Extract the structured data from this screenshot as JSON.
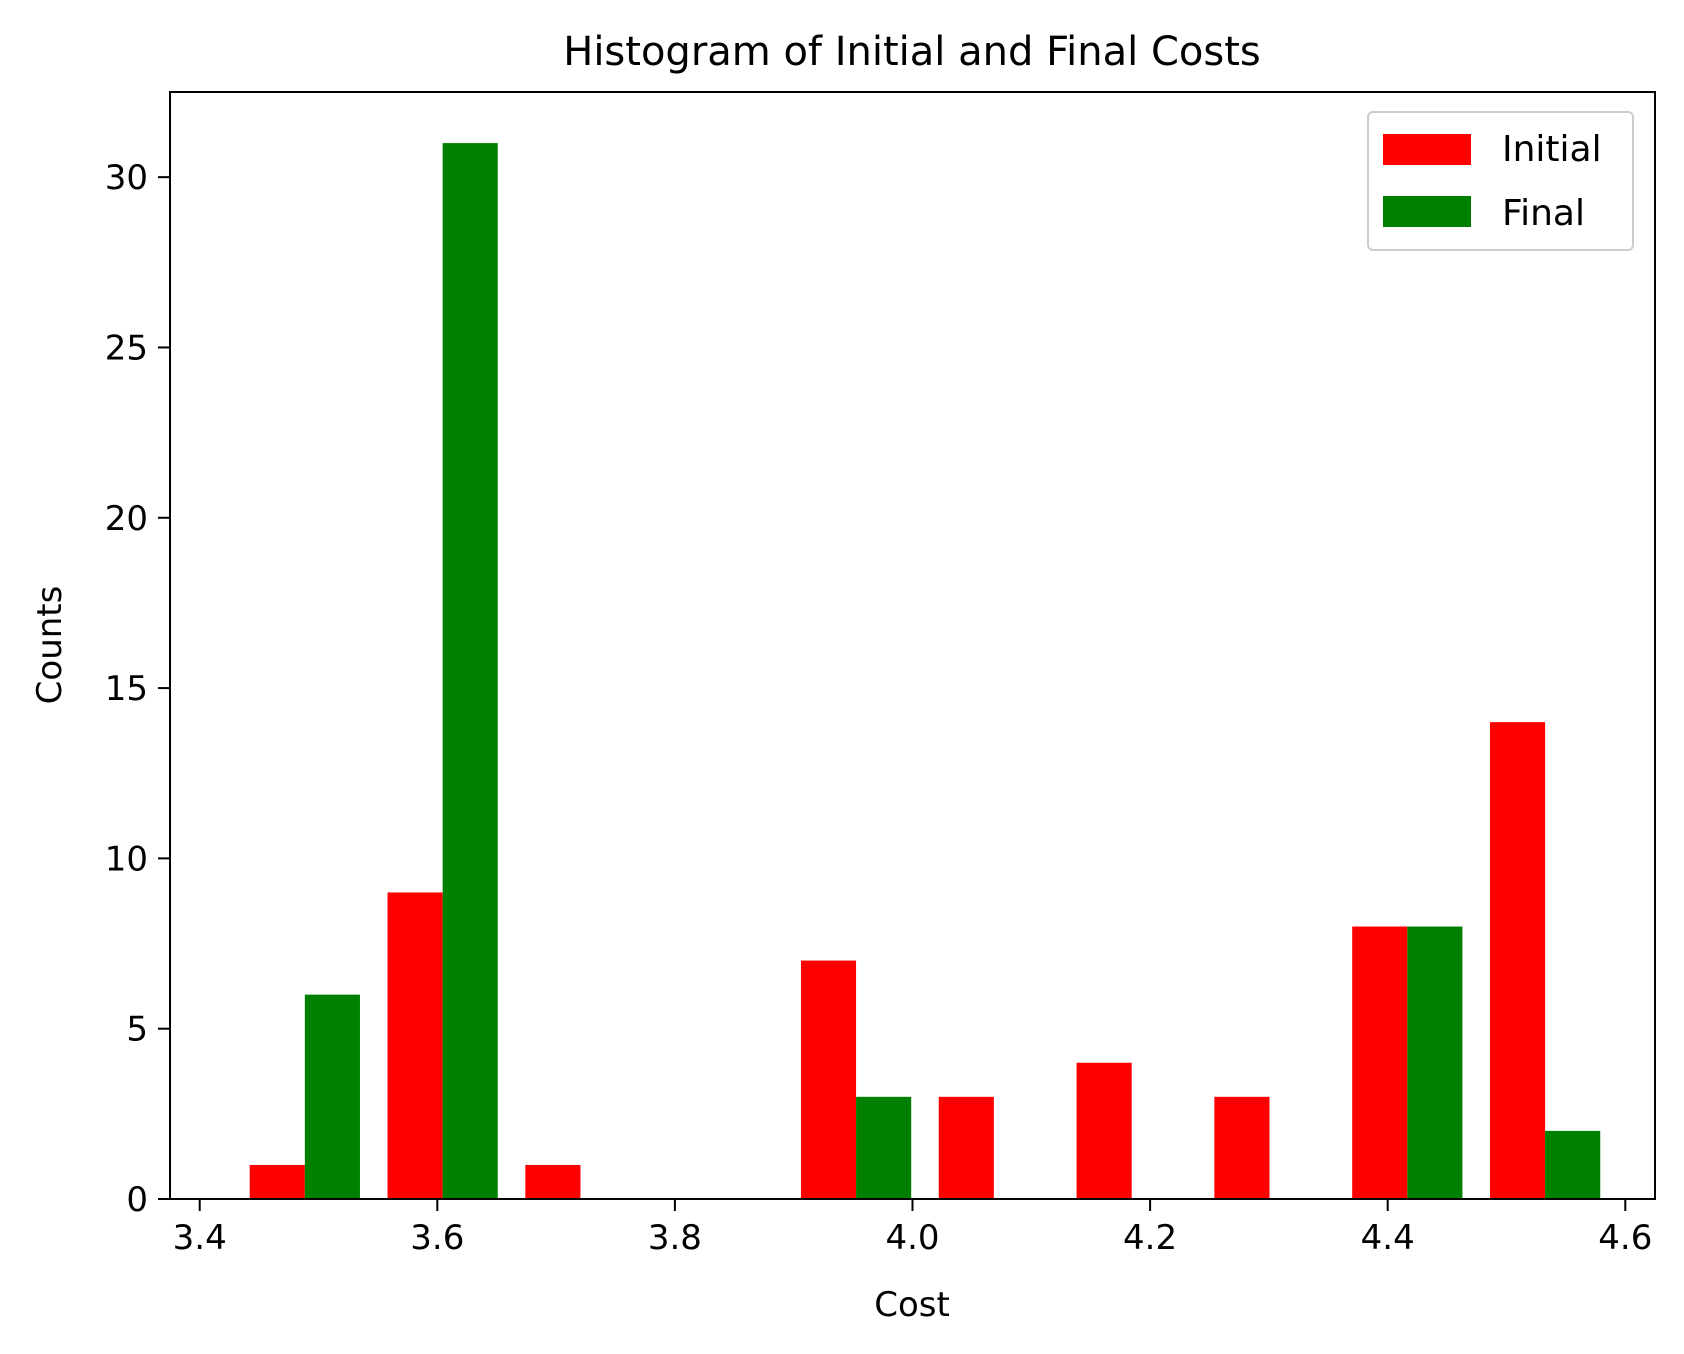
{
  "chart_data": {
    "type": "bar",
    "title": "Histogram of Initial and Final Costs",
    "xlabel": "Cost",
    "ylabel": "Counts",
    "xlim": [
      3.375,
      4.625
    ],
    "ylim": [
      0,
      32.5
    ],
    "xticks": [
      {
        "value": 3.4,
        "label": "3.4"
      },
      {
        "value": 3.6,
        "label": "3.6"
      },
      {
        "value": 3.8,
        "label": "3.8"
      },
      {
        "value": 4.0,
        "label": "4.0"
      },
      {
        "value": 4.2,
        "label": "4.2"
      },
      {
        "value": 4.4,
        "label": "4.4"
      },
      {
        "value": 4.6,
        "label": "4.6"
      }
    ],
    "yticks": [
      {
        "value": 0,
        "label": "0"
      },
      {
        "value": 5,
        "label": "5"
      },
      {
        "value": 10,
        "label": "10"
      },
      {
        "value": 15,
        "label": "15"
      },
      {
        "value": 20,
        "label": "20"
      },
      {
        "value": 25,
        "label": "25"
      },
      {
        "value": 30,
        "label": "30"
      }
    ],
    "bin_edges": [
      3.4305,
      3.5465,
      3.6625,
      3.7785,
      3.8945,
      4.0105,
      4.1265,
      4.2425,
      4.3585,
      4.4745,
      4.5905
    ],
    "series": [
      {
        "name": "Initial",
        "color": "#ff0000",
        "values": [
          1,
          9,
          1,
          0,
          7,
          3,
          4,
          3,
          8,
          14
        ]
      },
      {
        "name": "Final",
        "color": "#008000",
        "values": [
          6,
          31,
          0,
          0,
          3,
          0,
          0,
          0,
          8,
          2
        ]
      }
    ],
    "legend": "top-right",
    "grid": false
  }
}
